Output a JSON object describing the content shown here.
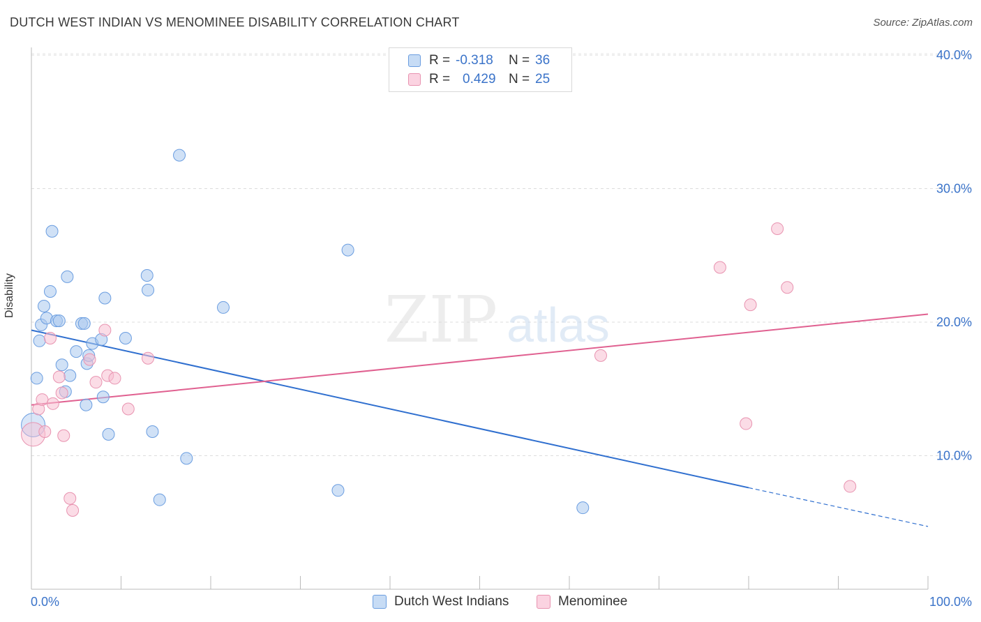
{
  "title": "DUTCH WEST INDIAN VS MENOMINEE DISABILITY CORRELATION CHART",
  "source": "Source: ZipAtlas.com",
  "watermark": {
    "zip": "ZIP",
    "atlas": "atlas"
  },
  "legend_top": [
    {
      "r_label": "R =",
      "r_value": "-0.318",
      "n_label": "N =",
      "n_value": "36"
    },
    {
      "r_label": "R =",
      "r_value": "0.429",
      "n_label": "N =",
      "n_value": "25"
    }
  ],
  "chart_data": {
    "type": "scatter",
    "title": "DUTCH WEST INDIAN VS MENOMINEE DISABILITY CORRELATION CHART",
    "xlabel": "",
    "ylabel": "Disability",
    "xlim": [
      0,
      100
    ],
    "ylim": [
      0,
      40
    ],
    "x_tick_labels": [
      "0.0%",
      "100.0%"
    ],
    "y_tick_labels": [
      "10.0%",
      "20.0%",
      "30.0%",
      "40.0%"
    ],
    "y_ticks": [
      10,
      20,
      30,
      40
    ],
    "grid": true,
    "legend_position": "bottom",
    "colors": {
      "blue_fill": "#aac8ef",
      "blue_stroke": "#6a9de0",
      "blue_line": "#2f6fcf",
      "pink_fill": "#f7bfd2",
      "pink_stroke": "#e893b0",
      "pink_line": "#e06090",
      "axis_label": "#3a73c9"
    },
    "series": [
      {
        "name": "Dutch West Indians",
        "color": "#aac8ef",
        "points": [
          [
            0.2,
            12.3
          ],
          [
            0.6,
            15.8
          ],
          [
            0.9,
            18.6
          ],
          [
            1.1,
            19.8
          ],
          [
            1.4,
            21.2
          ],
          [
            1.7,
            20.3
          ],
          [
            2.1,
            22.3
          ],
          [
            2.3,
            26.8
          ],
          [
            2.8,
            20.1
          ],
          [
            3.1,
            20.1
          ],
          [
            3.4,
            16.8
          ],
          [
            3.8,
            14.8
          ],
          [
            4.0,
            23.4
          ],
          [
            4.3,
            16.0
          ],
          [
            5.0,
            17.8
          ],
          [
            5.6,
            19.9
          ],
          [
            5.9,
            19.9
          ],
          [
            6.1,
            13.8
          ],
          [
            6.2,
            16.9
          ],
          [
            6.4,
            17.5
          ],
          [
            6.8,
            18.4
          ],
          [
            7.8,
            18.7
          ],
          [
            8.0,
            14.4
          ],
          [
            8.2,
            21.8
          ],
          [
            8.6,
            11.6
          ],
          [
            10.5,
            18.8
          ],
          [
            12.9,
            23.5
          ],
          [
            13.0,
            22.4
          ],
          [
            13.5,
            11.8
          ],
          [
            14.3,
            6.7
          ],
          [
            16.5,
            32.5
          ],
          [
            17.3,
            9.8
          ],
          [
            21.4,
            21.1
          ],
          [
            34.2,
            7.4
          ],
          [
            35.3,
            25.4
          ],
          [
            61.5,
            6.1
          ]
        ],
        "trend": {
          "x": [
            0,
            80
          ],
          "y": [
            19.4,
            7.6
          ],
          "dashed_x": [
            80,
            100
          ],
          "dashed_y": [
            7.6,
            4.7
          ]
        }
      },
      {
        "name": "Menominee",
        "color": "#f7bfd2",
        "points": [
          [
            0.2,
            11.6
          ],
          [
            0.8,
            13.5
          ],
          [
            1.2,
            14.2
          ],
          [
            1.5,
            11.8
          ],
          [
            2.1,
            18.8
          ],
          [
            2.4,
            13.9
          ],
          [
            3.1,
            15.9
          ],
          [
            3.4,
            14.7
          ],
          [
            3.6,
            11.5
          ],
          [
            4.3,
            6.8
          ],
          [
            4.6,
            5.9
          ],
          [
            6.5,
            17.2
          ],
          [
            7.2,
            15.5
          ],
          [
            8.2,
            19.4
          ],
          [
            8.5,
            16.0
          ],
          [
            9.3,
            15.8
          ],
          [
            10.8,
            13.5
          ],
          [
            13.0,
            17.3
          ],
          [
            63.5,
            17.5
          ],
          [
            76.8,
            24.1
          ],
          [
            79.7,
            12.4
          ],
          [
            80.2,
            21.3
          ],
          [
            83.2,
            27.0
          ],
          [
            84.3,
            22.6
          ],
          [
            91.3,
            7.7
          ]
        ],
        "trend": {
          "x": [
            0,
            100
          ],
          "y": [
            13.8,
            20.6
          ]
        }
      }
    ]
  }
}
